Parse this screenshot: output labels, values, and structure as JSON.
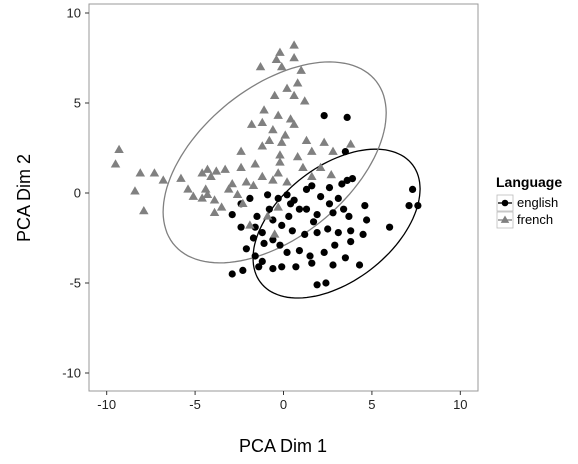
{
  "chart_data": {
    "type": "scatter",
    "title": "",
    "xlabel": "PCA Dim 1",
    "ylabel": "PCA Dim 2",
    "xlim": [
      -11,
      11
    ],
    "ylim": [
      -11,
      10.5
    ],
    "x_ticks": [
      -10,
      -5,
      0,
      5,
      10
    ],
    "y_ticks": [
      -10,
      -5,
      0,
      5,
      10
    ],
    "grid": false,
    "legend": {
      "title": "Language",
      "placement": "right"
    },
    "series": [
      {
        "name": "english",
        "marker": "circle",
        "color": "#000000",
        "ellipse": {
          "center": [
            3.0,
            -1.7
          ],
          "semi_axes": [
            5.4,
            3.2
          ],
          "angle_deg": 37
        },
        "points": [
          [
            7.3,
            0.2
          ],
          [
            7.1,
            -0.7
          ],
          [
            7.6,
            -0.7
          ],
          [
            6.0,
            -1.9
          ],
          [
            4.3,
            -4.0
          ],
          [
            3.6,
            4.2
          ],
          [
            2.3,
            4.3
          ],
          [
            3.5,
            2.3
          ],
          [
            3.9,
            0.8
          ],
          [
            3.6,
            0.7
          ],
          [
            3.3,
            0.5
          ],
          [
            2.6,
            0.3
          ],
          [
            1.6,
            0.4
          ],
          [
            1.3,
            0.2
          ],
          [
            2.1,
            -0.2
          ],
          [
            2.6,
            -0.6
          ],
          [
            3.1,
            -0.3
          ],
          [
            3.4,
            -0.9
          ],
          [
            2.8,
            -1.1
          ],
          [
            1.9,
            -1.2
          ],
          [
            1.3,
            -0.9
          ],
          [
            0.6,
            -0.4
          ],
          [
            0.2,
            -0.1
          ],
          [
            -0.3,
            -0.3
          ],
          [
            -0.9,
            -0.1
          ],
          [
            -1.9,
            -0.3
          ],
          [
            -2.4,
            -0.6
          ],
          [
            -2.9,
            -1.2
          ],
          [
            -2.4,
            -1.9
          ],
          [
            -1.6,
            -1.9
          ],
          [
            -0.6,
            -1.5
          ],
          [
            -0.1,
            -1.8
          ],
          [
            0.5,
            -2.1
          ],
          [
            1.2,
            -2.3
          ],
          [
            1.9,
            -2.2
          ],
          [
            2.5,
            -2.0
          ],
          [
            3.1,
            -2.2
          ],
          [
            3.8,
            -2.1
          ],
          [
            4.5,
            -2.3
          ],
          [
            4.7,
            -1.5
          ],
          [
            4.6,
            -0.7
          ],
          [
            3.7,
            -1.3
          ],
          [
            0.9,
            -0.9
          ],
          [
            0.3,
            -1.3
          ],
          [
            -0.6,
            -2.6
          ],
          [
            -1.1,
            -2.8
          ],
          [
            -1.7,
            -2.5
          ],
          [
            -2.1,
            -3.1
          ],
          [
            -1.6,
            -3.5
          ],
          [
            -0.6,
            -4.2
          ],
          [
            0.2,
            -3.3
          ],
          [
            0.9,
            -3.2
          ],
          [
            1.6,
            -3.9
          ],
          [
            2.3,
            -3.3
          ],
          [
            2.9,
            -2.9
          ],
          [
            3.5,
            -3.6
          ],
          [
            3.8,
            -2.7
          ],
          [
            1.9,
            -5.1
          ],
          [
            2.4,
            -5.0
          ],
          [
            -1.2,
            -3.8
          ],
          [
            -2.3,
            -4.3
          ],
          [
            -2.9,
            -4.5
          ],
          [
            -1.4,
            -4.1
          ],
          [
            -0.1,
            -4.1
          ],
          [
            0.7,
            -4.1
          ],
          [
            1.5,
            -3.5
          ],
          [
            2.8,
            -4.0
          ],
          [
            -0.2,
            -2.9
          ],
          [
            -1.2,
            -2.2
          ],
          [
            0.4,
            -0.6
          ],
          [
            1.7,
            -1.6
          ],
          [
            -0.8,
            -0.9
          ],
          [
            -1.5,
            -1.3
          ]
        ]
      },
      {
        "name": "french",
        "marker": "triangle",
        "color": "#808080",
        "ellipse": {
          "center": [
            -0.5,
            1.7
          ],
          "semi_axes": [
            7.3,
            4.2
          ],
          "angle_deg": 38
        },
        "points": [
          [
            0.6,
            8.2
          ],
          [
            0.6,
            7.5
          ],
          [
            -0.2,
            7.8
          ],
          [
            -0.4,
            7.4
          ],
          [
            -0.1,
            7.0
          ],
          [
            1.0,
            6.8
          ],
          [
            -1.3,
            7.0
          ],
          [
            0.8,
            6.1
          ],
          [
            0.2,
            5.8
          ],
          [
            -0.5,
            5.4
          ],
          [
            0.6,
            5.4
          ],
          [
            1.2,
            5.1
          ],
          [
            -1.1,
            4.6
          ],
          [
            -0.3,
            4.3
          ],
          [
            0.4,
            4.1
          ],
          [
            -1.2,
            3.9
          ],
          [
            -1.8,
            3.8
          ],
          [
            0.6,
            3.8
          ],
          [
            -0.6,
            3.5
          ],
          [
            0.1,
            3.2
          ],
          [
            -0.8,
            2.9
          ],
          [
            -0.1,
            2.8
          ],
          [
            1.3,
            2.9
          ],
          [
            2.3,
            2.8
          ],
          [
            2.8,
            2.3
          ],
          [
            3.8,
            2.7
          ],
          [
            -2.4,
            2.3
          ],
          [
            -0.2,
            2.1
          ],
          [
            2.1,
            1.4
          ],
          [
            1.6,
            0.9
          ],
          [
            -3.3,
            1.3
          ],
          [
            -3.8,
            1.2
          ],
          [
            -4.1,
            0.9
          ],
          [
            -4.3,
            1.3
          ],
          [
            -4.6,
            1.1
          ],
          [
            -5.8,
            0.8
          ],
          [
            -6.8,
            0.7
          ],
          [
            -7.3,
            1.1
          ],
          [
            -8.1,
            1.1
          ],
          [
            -9.3,
            2.4
          ],
          [
            -9.5,
            1.6
          ],
          [
            -8.4,
            0.1
          ],
          [
            -7.9,
            -1.0
          ],
          [
            -5.4,
            0.2
          ],
          [
            -5.1,
            -0.2
          ],
          [
            -4.6,
            -0.3
          ],
          [
            -4.4,
            0.2
          ],
          [
            -3.9,
            -0.4
          ],
          [
            -3.5,
            -0.8
          ],
          [
            -3.9,
            -1.1
          ],
          [
            -2.6,
            -0.1
          ],
          [
            -2.1,
            0.6
          ],
          [
            -1.7,
            0.4
          ],
          [
            -1.2,
            0.9
          ],
          [
            -0.6,
            0.7
          ],
          [
            0.2,
            0.6
          ],
          [
            -0.3,
            1.1
          ],
          [
            -1.6,
            1.6
          ],
          [
            -2.4,
            1.4
          ],
          [
            -2.9,
            0.5
          ],
          [
            -2.3,
            -0.6
          ],
          [
            -1.9,
            -1.8
          ],
          [
            -0.9,
            -1.3
          ],
          [
            -0.5,
            -2.3
          ],
          [
            -0.3,
            -0.8
          ],
          [
            1.1,
            1.4
          ],
          [
            2.7,
            1.0
          ],
          [
            -0.2,
            1.7
          ],
          [
            -3.1,
            0.2
          ],
          [
            -4.3,
            -0.1
          ],
          [
            -1.2,
            2.6
          ],
          [
            1.6,
            2.3
          ],
          [
            0.8,
            2.0
          ]
        ]
      }
    ]
  }
}
